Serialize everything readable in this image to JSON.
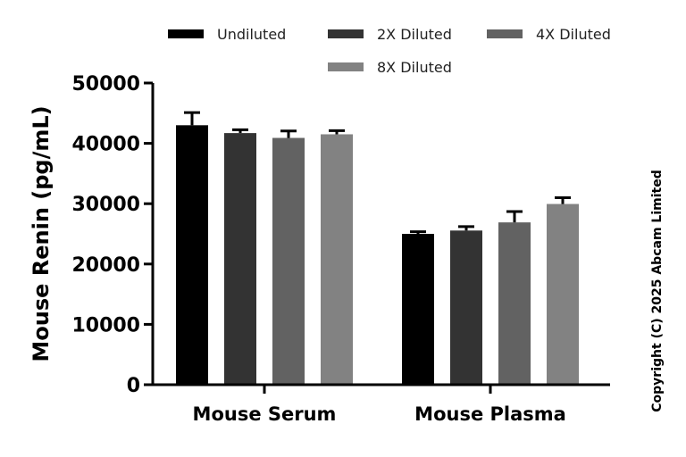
{
  "chart_data": {
    "type": "bar",
    "title": "",
    "xlabel": "",
    "ylabel": "Mouse Renin (pg/mL)",
    "ylim": [
      0,
      50000
    ],
    "yticks": [
      "0",
      "10000",
      "20000",
      "30000",
      "40000",
      "50000"
    ],
    "categories": [
      "Mouse Serum",
      "Mouse Plasma"
    ],
    "series": [
      {
        "name": "Undiluted",
        "color": "#000000",
        "values": [
          43000,
          25000
        ],
        "error": [
          2100,
          350
        ]
      },
      {
        "name": "2X Diluted",
        "color": "#333333",
        "values": [
          41700,
          25550
        ],
        "error": [
          550,
          650
        ]
      },
      {
        "name": "4X Diluted",
        "color": "#626262",
        "values": [
          40900,
          26900
        ],
        "error": [
          1150,
          1800
        ]
      },
      {
        "name": "8X Diluted",
        "color": "#828282",
        "values": [
          41500,
          29950
        ],
        "error": [
          600,
          1050
        ]
      }
    ],
    "legend_position": "top",
    "grid": false
  },
  "copyright": "Copyright (C) 2025 Abcam Limited"
}
